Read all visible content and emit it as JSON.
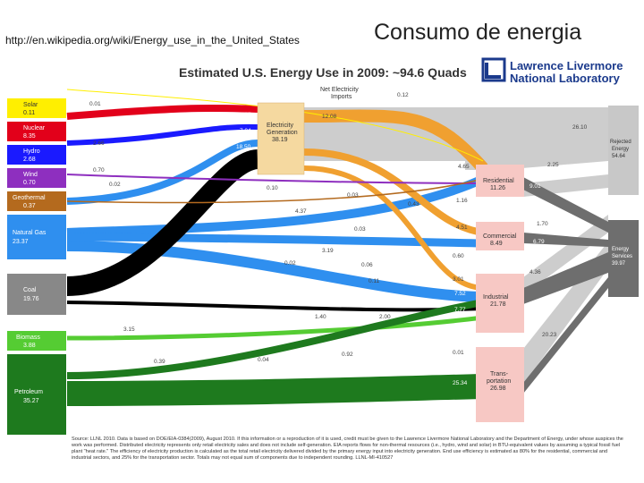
{
  "header": {
    "url": "http://en.wikipedia.org/wiki/Energy_use_in_the_United_States",
    "title": "Consumo de energia"
  },
  "diagram": {
    "title": "Estimated U.S. Energy Use in 2009: ~94.6 Quads",
    "logo_line1": "Lawrence Livermore",
    "logo_line2": "National Laboratory",
    "sources": [
      {
        "name": "Solar",
        "value": "0.11",
        "color": "#ffef00"
      },
      {
        "name": "Nuclear",
        "value": "8.35",
        "color": "#e2001a"
      },
      {
        "name": "Hydro",
        "value": "2.68",
        "color": "#1a1aff"
      },
      {
        "name": "Wind",
        "value": "0.70",
        "color": "#8e2fbf"
      },
      {
        "name": "Geothermal",
        "value": "0.37",
        "color": "#b46a1e"
      },
      {
        "name": "Natural Gas",
        "value": "23.37",
        "color": "#2f8fef"
      },
      {
        "name": "Coal",
        "value": "19.76",
        "color": "#888888"
      },
      {
        "name": "Biomass",
        "value": "3.88",
        "color": "#55cc33"
      },
      {
        "name": "Petroleum",
        "value": "35.27",
        "color": "#1e7a1e"
      }
    ],
    "electricity": {
      "line1": "Electricity",
      "line2": "Generation",
      "value": "38.19"
    },
    "imports": {
      "line1": "Net Electricity",
      "line2": "Imports",
      "value": "0.12"
    },
    "sectors": [
      {
        "name": "Residential",
        "value": "11.26"
      },
      {
        "name": "Commercial",
        "value": "8.49"
      },
      {
        "name": "Industrial",
        "value": "21.78"
      },
      {
        "name": "Trans-portation",
        "line1": "Trans-",
        "line2": "portation",
        "value": "26.98"
      }
    ],
    "rejected": {
      "line1": "Rejected",
      "line2": "Energy",
      "value": "54.64"
    },
    "services": {
      "line1": "Energy",
      "line2": "Services",
      "value": "39.97"
    },
    "flow_labels": [
      "0.01",
      "8.35",
      "7.04",
      "18.50",
      "2.66",
      "0.70",
      "0.02",
      "0.10",
      "12.08",
      "0.12",
      "26.10",
      "4.65",
      "2.25",
      "9.01",
      "0.03",
      "4.37",
      "0.43",
      "1.16",
      "1.70",
      "0.03",
      "3.19",
      "4.51",
      "6.79",
      "0.02",
      "0.06",
      "0.60",
      "4.36",
      "0.11",
      "3.01",
      "7.52",
      "17.43",
      "1.40",
      "2.00",
      "7.77",
      "20.23",
      "3.15",
      "0.92",
      "0.01",
      "0.39",
      "0.04",
      "25.34",
      "6.74"
    ],
    "footnote": "Source: LLNL 2010. Data is based on DOE/EIA-0384(2009), August 2010. If this information or a reproduction of it is used, credit must be given to the Lawrence Livermore National Laboratory and the Department of Energy, under whose auspices the work was performed. Distributed electricity represents only retail electricity sales and does not include self-generation. EIA reports flows for non-thermal resources (i.e., hydro, wind and solar) in BTU-equivalent values by assuming a typical fossil fuel plant \"heat rate.\" The efficiency of electricity production is calculated as the total retail electricity delivered divided by the primary energy input into electricity generation. End use efficiency is estimated as 80% for the residential, commercial and industrial sectors, and 25% for the transportation sector. Totals may not equal sum of components due to independent rounding. LLNL-MI-410527"
  }
}
